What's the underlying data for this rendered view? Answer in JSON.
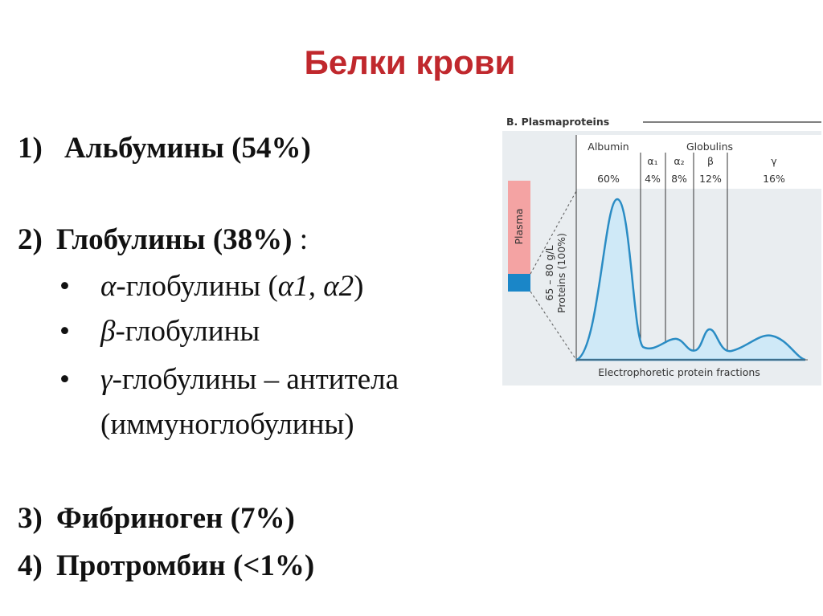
{
  "title": "Белки крови",
  "list": [
    {
      "marker": "1)",
      "segments": [
        {
          "text": "Альбумины (54%)",
          "style": "bold"
        }
      ]
    },
    {
      "marker": "2)",
      "segments": [
        {
          "text": "Глобулины (38%)",
          "style": "bold"
        },
        {
          "text": " :",
          "style": "normal"
        }
      ]
    },
    {
      "marker": "•",
      "segments": [
        {
          "text": "α",
          "style": "italic"
        },
        {
          "text": "-глобулины (",
          "style": "normal"
        },
        {
          "text": "α1, α2",
          "style": "italic"
        },
        {
          "text": ")",
          "style": "normal"
        }
      ]
    },
    {
      "marker": "•",
      "segments": [
        {
          "text": "β",
          "style": "italic"
        },
        {
          "text": "-глобулины",
          "style": "normal"
        }
      ]
    },
    {
      "marker": "•",
      "segments": [
        {
          "text": "γ",
          "style": "italic"
        },
        {
          "text": "-глобулины – антитела",
          "style": "normal"
        }
      ]
    },
    {
      "segments": [
        {
          "text": "(иммуноглобулины)",
          "style": "normal"
        }
      ]
    },
    {
      "marker": "3)",
      "segments": [
        {
          "text": "Фибриноген (7%)",
          "style": "bold"
        }
      ]
    },
    {
      "marker": "4)",
      "segments": [
        {
          "text": "Протромбин (<1%)",
          "style": "bold"
        }
      ]
    }
  ],
  "figure": {
    "title": "B. Plasmaproteins",
    "globulins": "Globulins",
    "fractions": [
      {
        "label": "Albumin",
        "percent": "60%"
      },
      {
        "label": "α₁",
        "percent": "4%"
      },
      {
        "label": "α₂",
        "percent": "8%"
      },
      {
        "label": "β",
        "percent": "12%"
      },
      {
        "label": "γ",
        "percent": "16%"
      }
    ],
    "plasma": "Plasma",
    "proteins": [
      "65 – 80 g/L",
      "Proteins (100%)"
    ],
    "x_label": "Electrophoretic protein fractions"
  }
}
